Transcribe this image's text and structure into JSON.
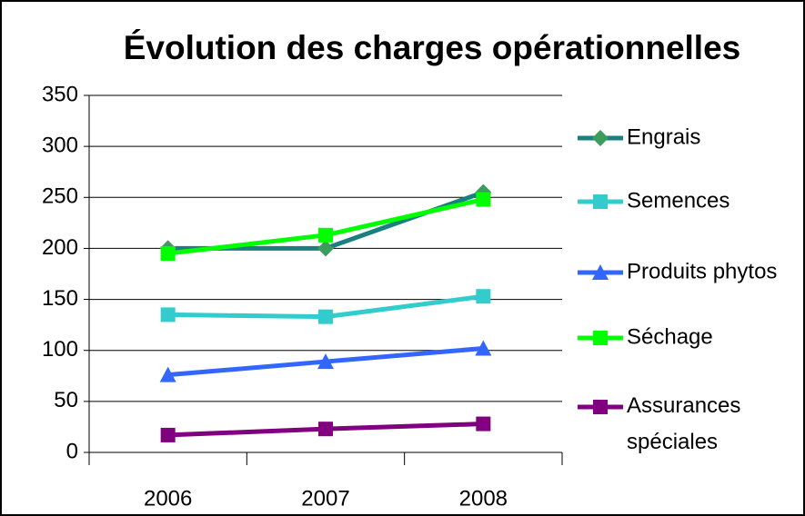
{
  "chart_data": {
    "type": "line",
    "title": "Évolution des charges opérationnelles",
    "categories": [
      "2006",
      "2007",
      "2008"
    ],
    "series": [
      {
        "name": "Engrais",
        "color": "#1a7f7f",
        "marker": "diamond",
        "marker_color": "#3c9c5c",
        "values": [
          200,
          200,
          255
        ]
      },
      {
        "name": "Semences",
        "color": "#33cccc",
        "marker": "square",
        "marker_color": "#33cccc",
        "values": [
          135,
          133,
          153
        ]
      },
      {
        "name": "Produits phytos",
        "color": "#3366ff",
        "marker": "triangle",
        "marker_color": "#3366ff",
        "values": [
          76,
          89,
          102
        ]
      },
      {
        "name": "Séchage",
        "color": "#00ff00",
        "marker": "square",
        "marker_color": "#00ff00",
        "values": [
          195,
          213,
          248
        ]
      },
      {
        "name": "Assurances spéciales",
        "color": "#800080",
        "marker": "square",
        "marker_color": "#800080",
        "values": [
          17,
          23,
          28
        ]
      }
    ],
    "ylim": [
      0,
      350
    ],
    "yticks": [
      0,
      50,
      100,
      150,
      200,
      250,
      300,
      350
    ],
    "grid": true,
    "legend": "right"
  }
}
